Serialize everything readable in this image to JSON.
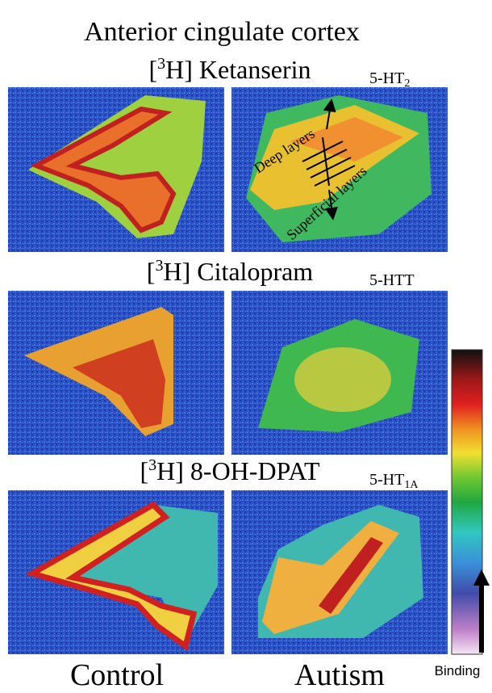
{
  "figure": {
    "title": "Anterior cingulate cortex",
    "rows": [
      {
        "ligand": {
          "open": "[",
          "isotope": "3",
          "name": "H] Ketanserin"
        },
        "target": {
          "main": "5-HT",
          "sub": "2"
        }
      },
      {
        "ligand": {
          "open": "[",
          "isotope": "3",
          "name": "H] Citalopram"
        },
        "target": {
          "main": "5-HTT",
          "sub": ""
        }
      },
      {
        "ligand": {
          "open": "[",
          "isotope": "3",
          "name": "H] 8-OH-DPAT"
        },
        "target": {
          "main": "5-HT",
          "sub": "1A"
        }
      }
    ],
    "annotations": [
      "Deep layers",
      "Superficial layers"
    ],
    "columns": [
      "Control",
      "Autism"
    ],
    "colorbar_label": "Binding"
  }
}
